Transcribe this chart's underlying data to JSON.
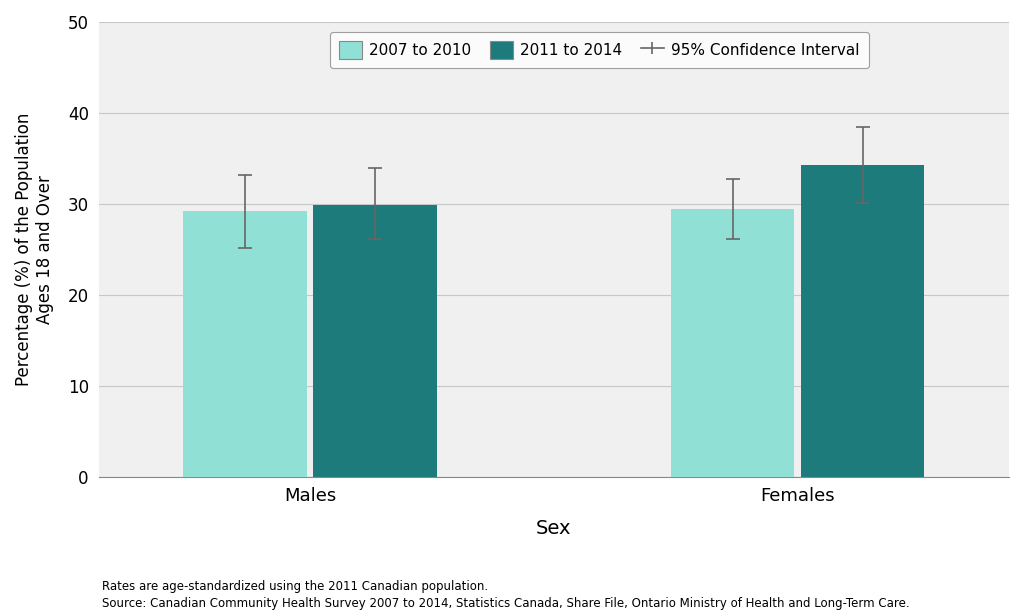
{
  "categories": [
    "Males",
    "Females"
  ],
  "bar1_values": [
    29.2,
    29.5
  ],
  "bar2_values": [
    29.9,
    34.3
  ],
  "bar1_ci_low": [
    25.2,
    26.2
  ],
  "bar1_ci_high": [
    33.2,
    32.8
  ],
  "bar2_ci_low": [
    26.2,
    30.1
  ],
  "bar2_ci_high": [
    34.0,
    38.5
  ],
  "bar1_color": "#90E0D6",
  "bar2_color": "#1E7B7B",
  "ci_color": "#666666",
  "ylabel": "Percentage (%) of the Population\nAges 18 and Over",
  "xlabel": "Sex",
  "ylim": [
    0,
    50
  ],
  "yticks": [
    0,
    10,
    20,
    30,
    40,
    50
  ],
  "legend_label1": "2007 to 2010",
  "legend_label2": "2011 to 2014",
  "legend_label3": "95% Confidence Interval",
  "footnote1": "Rates are age-standardized using the 2011 Canadian population.",
  "footnote2": "Source: Canadian Community Health Survey 2007 to 2014, Statistics Canada, Share File, Ontario Ministry of Health and Long-Term Care.",
  "bar_width": 0.38,
  "group_centers": [
    1.0,
    2.5
  ],
  "background_color": "#FFFFFF",
  "grid_color": "#C8C8C8",
  "plot_bg_color": "#F0F0F0"
}
